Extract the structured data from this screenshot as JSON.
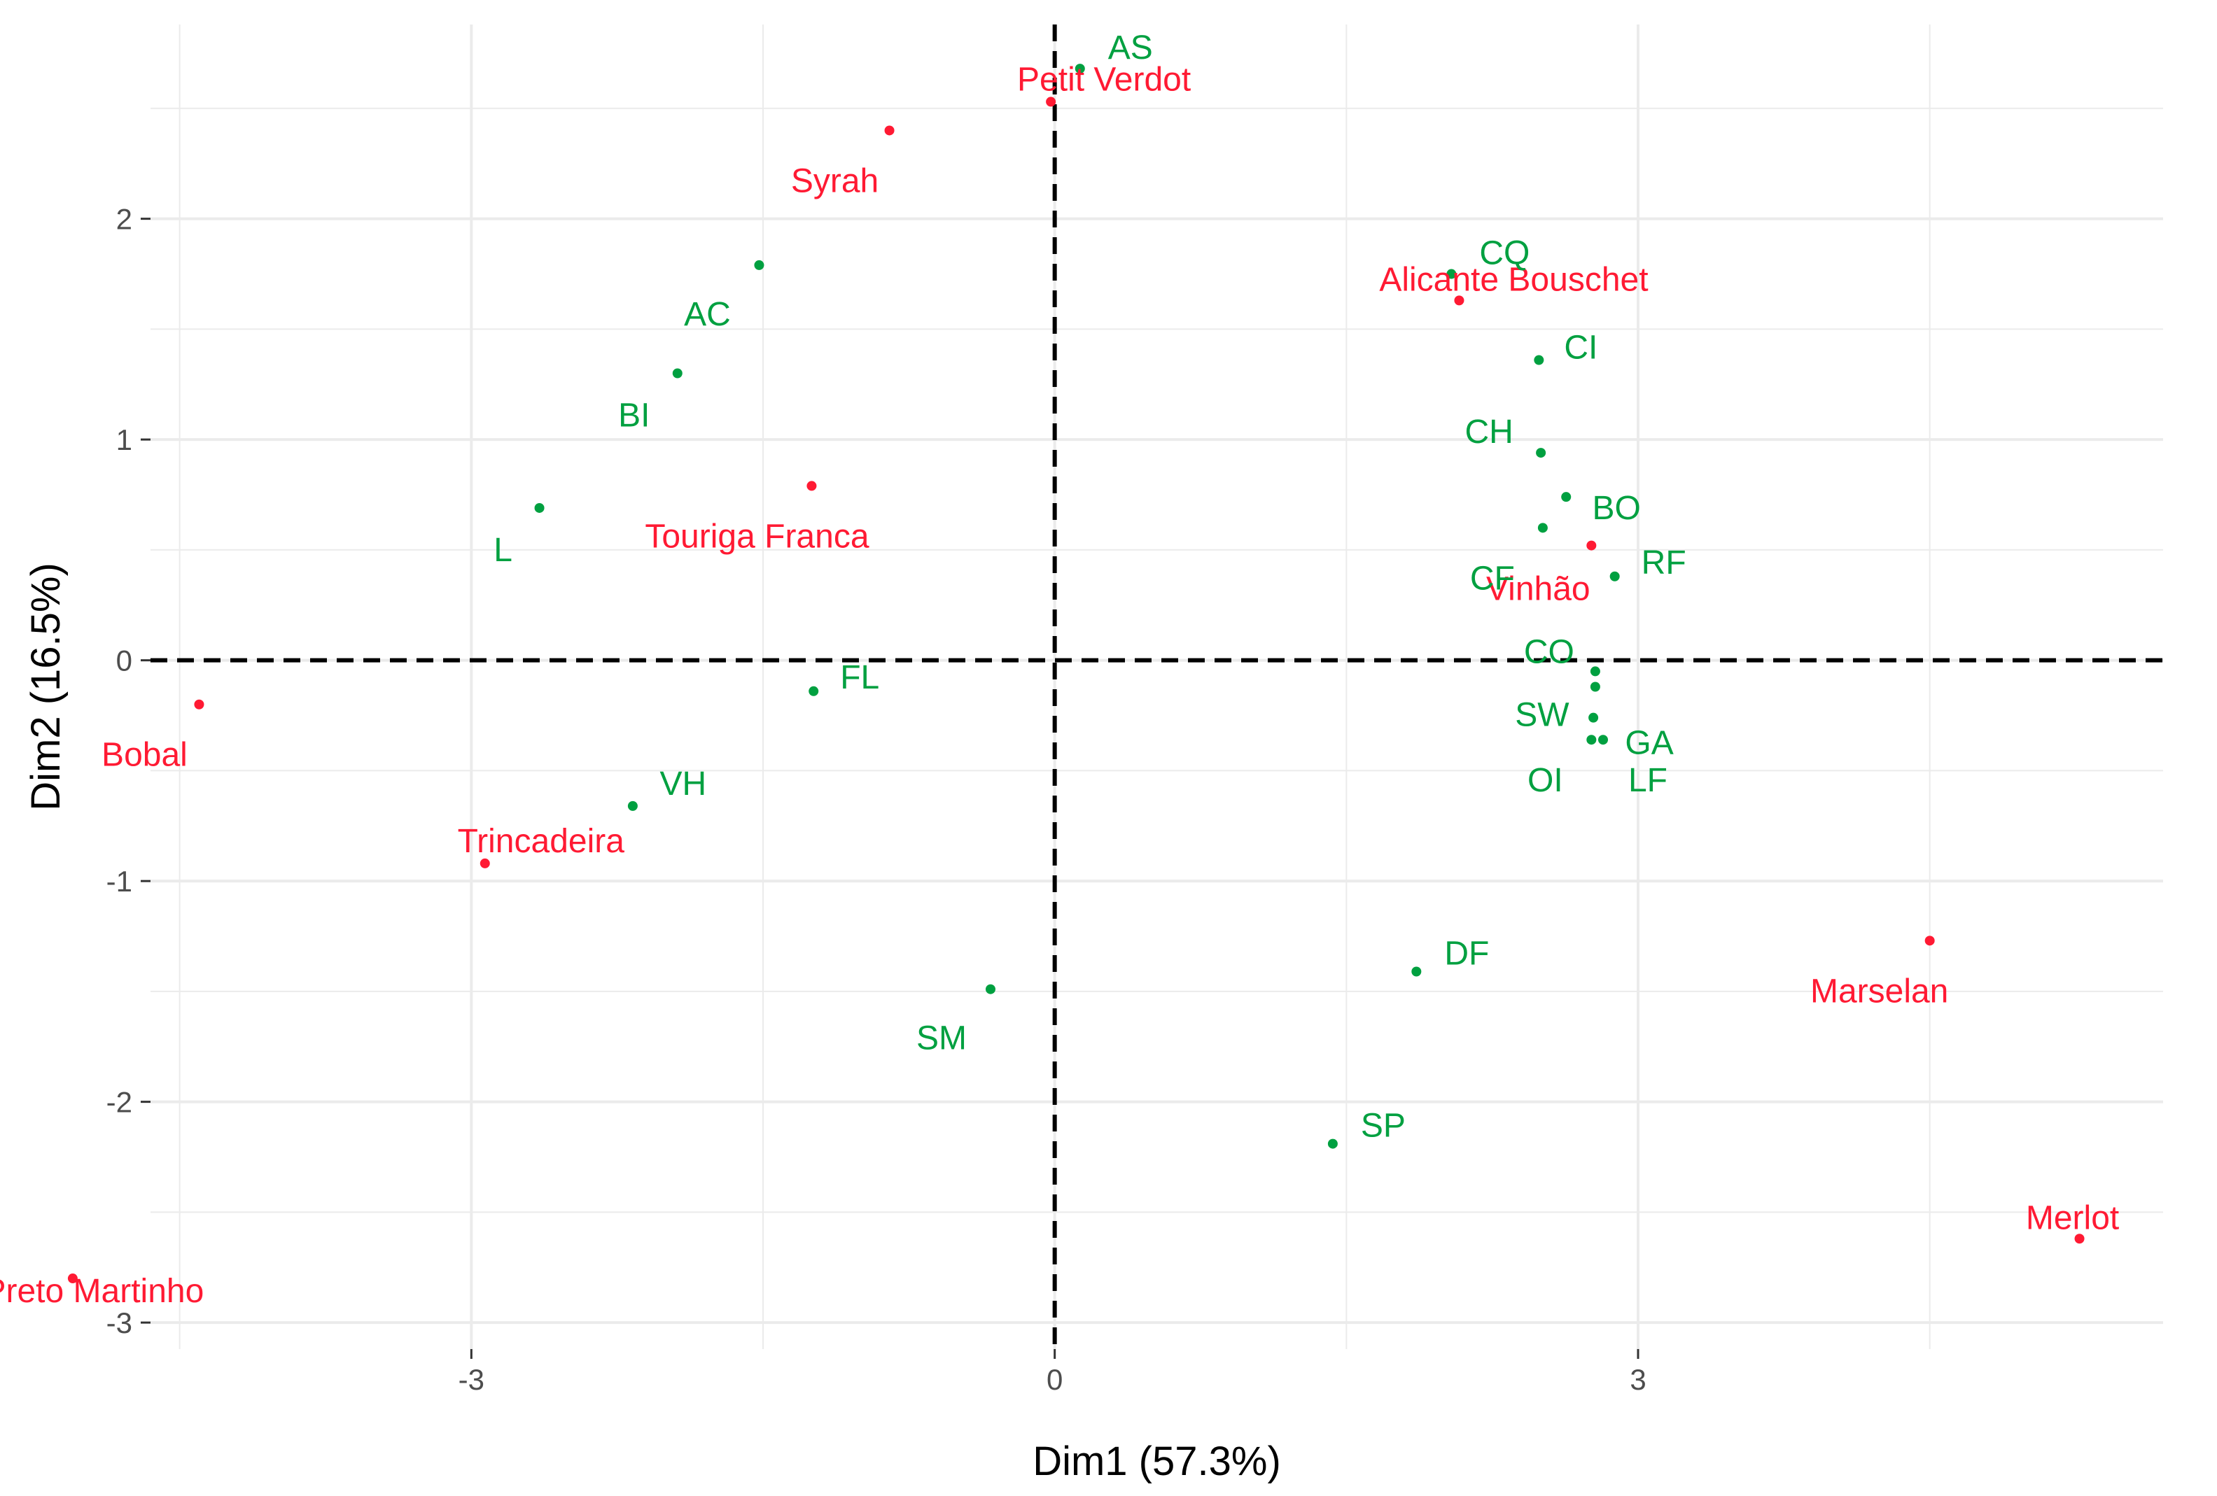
{
  "chart_data": {
    "type": "scatter",
    "title": "",
    "xlabel": "Dim1 (57.3%)",
    "ylabel": "Dim2 (16.5%)",
    "xlim": [
      -4.65,
      5.7
    ],
    "ylim": [
      -3.12,
      2.88
    ],
    "xticks": [
      -3,
      0,
      3
    ],
    "xtick_labels": [
      "-3",
      "0",
      "3"
    ],
    "yticks": [
      -3,
      -2,
      -1,
      0,
      1,
      2
    ],
    "ytick_labels": [
      "-3",
      "-2",
      "-1",
      "0",
      "1",
      "2"
    ],
    "grid": true,
    "reference_lines": {
      "x": 0,
      "y": 0,
      "style": "dashed"
    },
    "colors": {
      "grape": "#ff1a33",
      "attribute": "#00a040",
      "axis_text": "#4d4d4d",
      "grid": "#ebebeb"
    },
    "series": [
      {
        "name": "grape",
        "color": "#ff1a33",
        "points": [
          {
            "label": "Petit Verdot",
            "x": -0.02,
            "y": 2.53
          },
          {
            "label": "Syrah",
            "x": -0.85,
            "y": 2.4
          },
          {
            "label": "Alicante Bouschet",
            "x": 2.08,
            "y": 1.63
          },
          {
            "label": "Touriga Franca",
            "x": -1.25,
            "y": 0.79
          },
          {
            "label": "Vinhão",
            "x": 2.76,
            "y": 0.52
          },
          {
            "label": "Bobal",
            "x": -4.4,
            "y": -0.2
          },
          {
            "label": "Trincadeira",
            "x": -2.93,
            "y": -0.92
          },
          {
            "label": "Marselan",
            "x": 4.5,
            "y": -1.27
          },
          {
            "label": "Merlot",
            "x": 5.27,
            "y": -2.62
          },
          {
            "label": "Preto Martinho",
            "x": -5.05,
            "y": -2.8
          }
        ]
      },
      {
        "name": "attribute",
        "color": "#00a040",
        "points": [
          {
            "label": "AS",
            "x": 0.13,
            "y": 2.68
          },
          {
            "label": "CQ",
            "x": 2.04,
            "y": 1.75
          },
          {
            "label": "AC",
            "x": -1.52,
            "y": 1.79
          },
          {
            "label": "CI",
            "x": 2.49,
            "y": 1.36
          },
          {
            "label": "BI",
            "x": -1.94,
            "y": 1.3
          },
          {
            "label": "CH",
            "x": 2.5,
            "y": 0.94
          },
          {
            "label": "BO",
            "x": 2.63,
            "y": 0.74
          },
          {
            "label": "L",
            "x": -2.65,
            "y": 0.69
          },
          {
            "label": "CF",
            "x": 2.51,
            "y": 0.6
          },
          {
            "label": "RF",
            "x": 2.88,
            "y": 0.38
          },
          {
            "label": "CO",
            "x": 2.78,
            "y": -0.05
          },
          {
            "label": "FL",
            "x": -1.24,
            "y": -0.14
          },
          {
            "label": "SW",
            "x": 2.78,
            "y": -0.12
          },
          {
            "label": "GA",
            "x": 2.77,
            "y": -0.26
          },
          {
            "label": "OI",
            "x": 2.76,
            "y": -0.36
          },
          {
            "label": "LF",
            "x": 2.82,
            "y": -0.36
          },
          {
            "label": "VH",
            "x": -2.17,
            "y": -0.66
          },
          {
            "label": "DF",
            "x": 1.86,
            "y": -1.41
          },
          {
            "label": "SM",
            "x": -0.33,
            "y": -1.49
          },
          {
            "label": "SP",
            "x": 1.43,
            "y": -2.19
          }
        ]
      }
    ]
  }
}
